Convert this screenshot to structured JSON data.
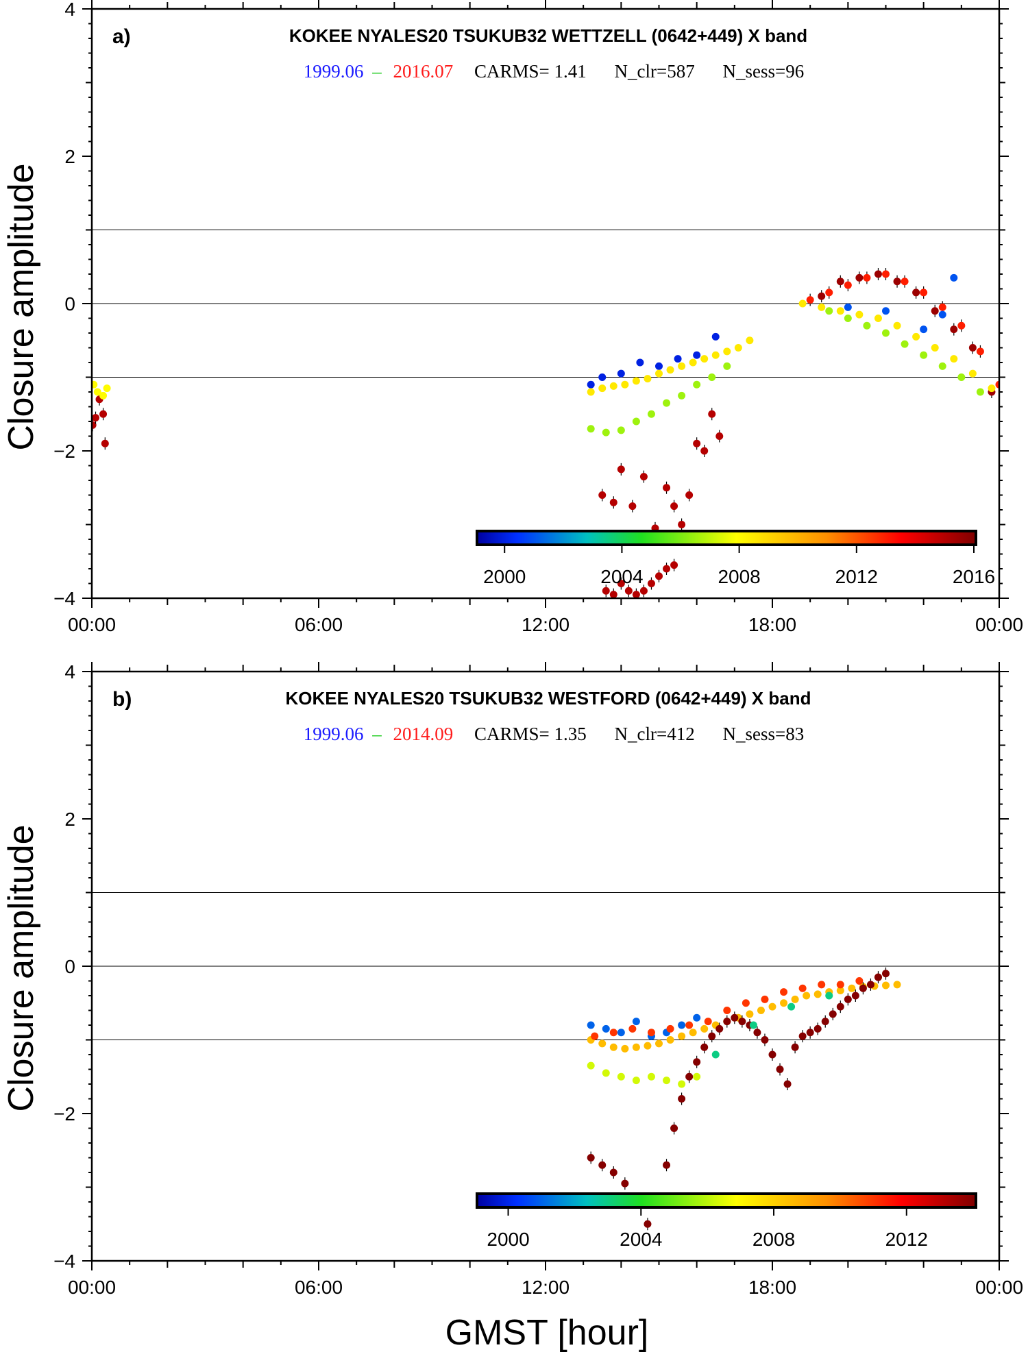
{
  "figure": {
    "ylabel": "Closure amplitude",
    "xlabel": "GMST [hour]"
  },
  "chart_data": [
    {
      "type": "scatter",
      "panel_label": "a)",
      "title": "KOKEE NYALES20 TSUKUB32 WETTZELL  (0642+449) X band",
      "info": {
        "start": "1999.06",
        "dash": "–",
        "end": "2016.07",
        "carms": "CARMS= 1.41",
        "n_clr": "N_clr=587",
        "n_sess": "N_sess=96"
      },
      "xlim": [
        0,
        24
      ],
      "ylim": [
        -4,
        4
      ],
      "x_ticks": [
        "00:00",
        "06:00",
        "12:00",
        "18:00",
        "00:00"
      ],
      "y_ticks": [
        "−4",
        "−2",
        "0",
        "2",
        "4"
      ],
      "reference_lines": [
        1,
        0,
        -1
      ],
      "colorbar": {
        "range": [
          1999.06,
          2016.07
        ],
        "tick_values": [
          2000,
          2004,
          2008,
          2012,
          2016
        ],
        "ticks": [
          "2000",
          "2004",
          "2008",
          "2012",
          "2016"
        ]
      },
      "series": [
        {
          "year": 2015.0,
          "x": [
            0.02,
            0.1,
            0.2,
            0.3,
            0.35
          ],
          "y": [
            -1.65,
            -1.55,
            -1.3,
            -1.5,
            -1.9
          ]
        },
        {
          "year": 2008.0,
          "x": [
            0.05,
            0.15,
            0.3,
            0.4
          ],
          "y": [
            -1.1,
            -1.2,
            -1.25,
            -1.15
          ]
        },
        {
          "year": 2000.0,
          "x": [
            13.2,
            13.5,
            14.0,
            14.5,
            15.0,
            15.5,
            16.0,
            16.5
          ],
          "y": [
            -1.1,
            -1.0,
            -0.95,
            -0.8,
            -0.85,
            -0.75,
            -0.7,
            -0.45
          ]
        },
        {
          "year": 2006.5,
          "x": [
            13.2,
            13.6,
            14.0,
            14.4,
            14.8,
            15.2,
            15.6,
            16.0,
            16.4,
            16.8
          ],
          "y": [
            -1.7,
            -1.75,
            -1.72,
            -1.6,
            -1.5,
            -1.35,
            -1.25,
            -1.1,
            -1.0,
            -0.85
          ]
        },
        {
          "year": 2008.5,
          "x": [
            13.2,
            13.5,
            13.8,
            14.1,
            14.4,
            14.7,
            15.0,
            15.3,
            15.6,
            15.9,
            16.2,
            16.5,
            16.8,
            17.1,
            17.4
          ],
          "y": [
            -1.2,
            -1.15,
            -1.12,
            -1.1,
            -1.05,
            -1.02,
            -0.95,
            -0.9,
            -0.85,
            -0.8,
            -0.75,
            -0.7,
            -0.65,
            -0.6,
            -0.5
          ]
        },
        {
          "year": 2015.0,
          "x": [
            13.5,
            13.8,
            14.0,
            14.3,
            14.6,
            14.9,
            15.2,
            15.4,
            15.6,
            15.8,
            16.0,
            16.2,
            16.4,
            16.6
          ],
          "y": [
            -2.6,
            -2.7,
            -2.25,
            -2.75,
            -2.35,
            -3.05,
            -2.5,
            -2.75,
            -3.0,
            -2.6,
            -1.9,
            -2.0,
            -1.5,
            -1.8
          ]
        },
        {
          "year": 2015.0,
          "x": [
            13.6,
            13.8,
            14.0,
            14.2,
            14.4,
            14.6,
            14.8,
            15.0,
            15.2,
            15.4
          ],
          "y": [
            -3.9,
            -3.95,
            -3.8,
            -3.9,
            -3.95,
            -3.9,
            -3.8,
            -3.7,
            -3.6,
            -3.55
          ]
        },
        {
          "year": 2013.0,
          "x": [
            19.0,
            19.5,
            20.0,
            20.5,
            21.0,
            21.5,
            22.0,
            22.5,
            23.0,
            23.5,
            24.0
          ],
          "y": [
            0.05,
            0.15,
            0.25,
            0.35,
            0.4,
            0.3,
            0.15,
            -0.05,
            -0.3,
            -0.65,
            -1.1
          ]
        },
        {
          "year": 2015.5,
          "x": [
            19.3,
            19.8,
            20.3,
            20.8,
            21.3,
            21.8,
            22.3,
            22.8,
            23.3,
            23.8
          ],
          "y": [
            0.1,
            0.3,
            0.35,
            0.4,
            0.3,
            0.15,
            -0.1,
            -0.35,
            -0.6,
            -1.2
          ]
        },
        {
          "year": 2008.5,
          "x": [
            18.8,
            19.3,
            19.8,
            20.3,
            20.8,
            21.3,
            21.8,
            22.3,
            22.8,
            23.3,
            23.8
          ],
          "y": [
            0.0,
            -0.05,
            -0.1,
            -0.15,
            -0.2,
            -0.3,
            -0.45,
            -0.6,
            -0.75,
            -0.95,
            -1.15
          ]
        },
        {
          "year": 2006.5,
          "x": [
            19.5,
            20.0,
            20.5,
            21.0,
            21.5,
            22.0,
            22.5,
            23.0,
            23.5
          ],
          "y": [
            -0.1,
            -0.2,
            -0.3,
            -0.4,
            -0.55,
            -0.7,
            -0.85,
            -1.0,
            -1.2
          ]
        },
        {
          "year": 2001.0,
          "x": [
            20.0,
            21.0,
            22.0,
            22.5,
            22.8
          ],
          "y": [
            -0.05,
            -0.1,
            -0.35,
            -0.15,
            0.35
          ]
        }
      ]
    },
    {
      "type": "scatter",
      "panel_label": "b)",
      "title": "KOKEE NYALES20 TSUKUB32 WESTFORD  (0642+449) X band",
      "info": {
        "start": "1999.06",
        "dash": "–",
        "end": "2014.09",
        "carms": "CARMS= 1.35",
        "n_clr": "N_clr=412",
        "n_sess": "N_sess=83"
      },
      "xlim": [
        0,
        24
      ],
      "ylim": [
        -4,
        4
      ],
      "x_ticks": [
        "00:00",
        "06:00",
        "12:00",
        "18:00",
        "00:00"
      ],
      "y_ticks": [
        "−4",
        "−2",
        "0",
        "2",
        "4"
      ],
      "reference_lines": [
        1,
        0,
        -1
      ],
      "colorbar": {
        "range": [
          1999.06,
          2014.09
        ],
        "tick_values": [
          2000,
          2004,
          2008,
          2012
        ],
        "ticks": [
          "2000",
          "2004",
          "2008",
          "2012"
        ]
      },
      "series": [
        {
          "year": 2001.0,
          "x": [
            13.2,
            13.6,
            14.0,
            14.4,
            14.8,
            15.2,
            15.6,
            16.0
          ],
          "y": [
            -0.8,
            -0.85,
            -0.9,
            -0.75,
            -0.95,
            -0.9,
            -0.8,
            -0.7
          ]
        },
        {
          "year": 2008.5,
          "x": [
            13.2,
            13.5,
            13.8,
            14.1,
            14.4,
            14.7,
            15.0,
            15.3,
            15.6,
            15.9,
            16.2,
            16.5,
            16.8,
            17.1,
            17.4,
            17.7,
            18.0,
            18.3,
            18.6,
            18.9,
            19.2,
            19.5,
            19.8,
            20.1,
            20.4,
            20.7,
            21.0,
            21.3
          ],
          "y": [
            -1.0,
            -1.05,
            -1.1,
            -1.12,
            -1.1,
            -1.08,
            -1.05,
            -1.0,
            -0.95,
            -0.9,
            -0.85,
            -0.8,
            -0.75,
            -0.7,
            -0.65,
            -0.6,
            -0.55,
            -0.5,
            -0.45,
            -0.4,
            -0.38,
            -0.35,
            -0.33,
            -0.3,
            -0.28,
            -0.27,
            -0.26,
            -0.25
          ]
        },
        {
          "year": 2011.0,
          "x": [
            13.3,
            13.8,
            14.3,
            14.8,
            15.3,
            15.8,
            16.3,
            16.8,
            17.3,
            17.8,
            18.3,
            18.8,
            19.3,
            19.8,
            20.3,
            20.8
          ],
          "y": [
            -0.95,
            -0.9,
            -0.85,
            -0.9,
            -0.85,
            -0.8,
            -0.75,
            -0.6,
            -0.5,
            -0.45,
            -0.35,
            -0.3,
            -0.25,
            -0.25,
            -0.2,
            -0.15
          ]
        },
        {
          "year": 2006.3,
          "x": [
            13.2,
            13.6,
            14.0,
            14.4,
            14.8,
            15.2,
            15.6,
            16.0
          ],
          "y": [
            -1.35,
            -1.45,
            -1.5,
            -1.55,
            -1.5,
            -1.55,
            -1.6,
            -1.5
          ]
        },
        {
          "year": 2014.0,
          "x": [
            13.2,
            13.5,
            13.8,
            14.1,
            14.4,
            14.7,
            15.0,
            15.2,
            15.4,
            15.6,
            15.8,
            16.0,
            16.2,
            16.4,
            16.6,
            16.8,
            17.0,
            17.2,
            17.4,
            17.6,
            17.8,
            18.0,
            18.2,
            18.4,
            18.6,
            18.8,
            19.0,
            19.2,
            19.4,
            19.6,
            19.8,
            20.0,
            20.2,
            20.4,
            20.6,
            20.8,
            21.0
          ],
          "y": [
            -2.6,
            -2.7,
            -2.8,
            -2.95,
            -3.2,
            -3.5,
            -3.2,
            -2.7,
            -2.2,
            -1.8,
            -1.5,
            -1.3,
            -1.1,
            -0.95,
            -0.85,
            -0.75,
            -0.7,
            -0.75,
            -0.8,
            -0.9,
            -1.0,
            -1.2,
            -1.4,
            -1.6,
            -1.1,
            -0.95,
            -0.9,
            -0.85,
            -0.75,
            -0.65,
            -0.55,
            -0.45,
            -0.4,
            -0.3,
            -0.25,
            -0.15,
            -0.1
          ]
        },
        {
          "year": 2003.0,
          "x": [
            16.5,
            17.5,
            18.5,
            19.5
          ],
          "y": [
            -1.2,
            -0.8,
            -0.55,
            -0.4
          ]
        }
      ]
    }
  ]
}
